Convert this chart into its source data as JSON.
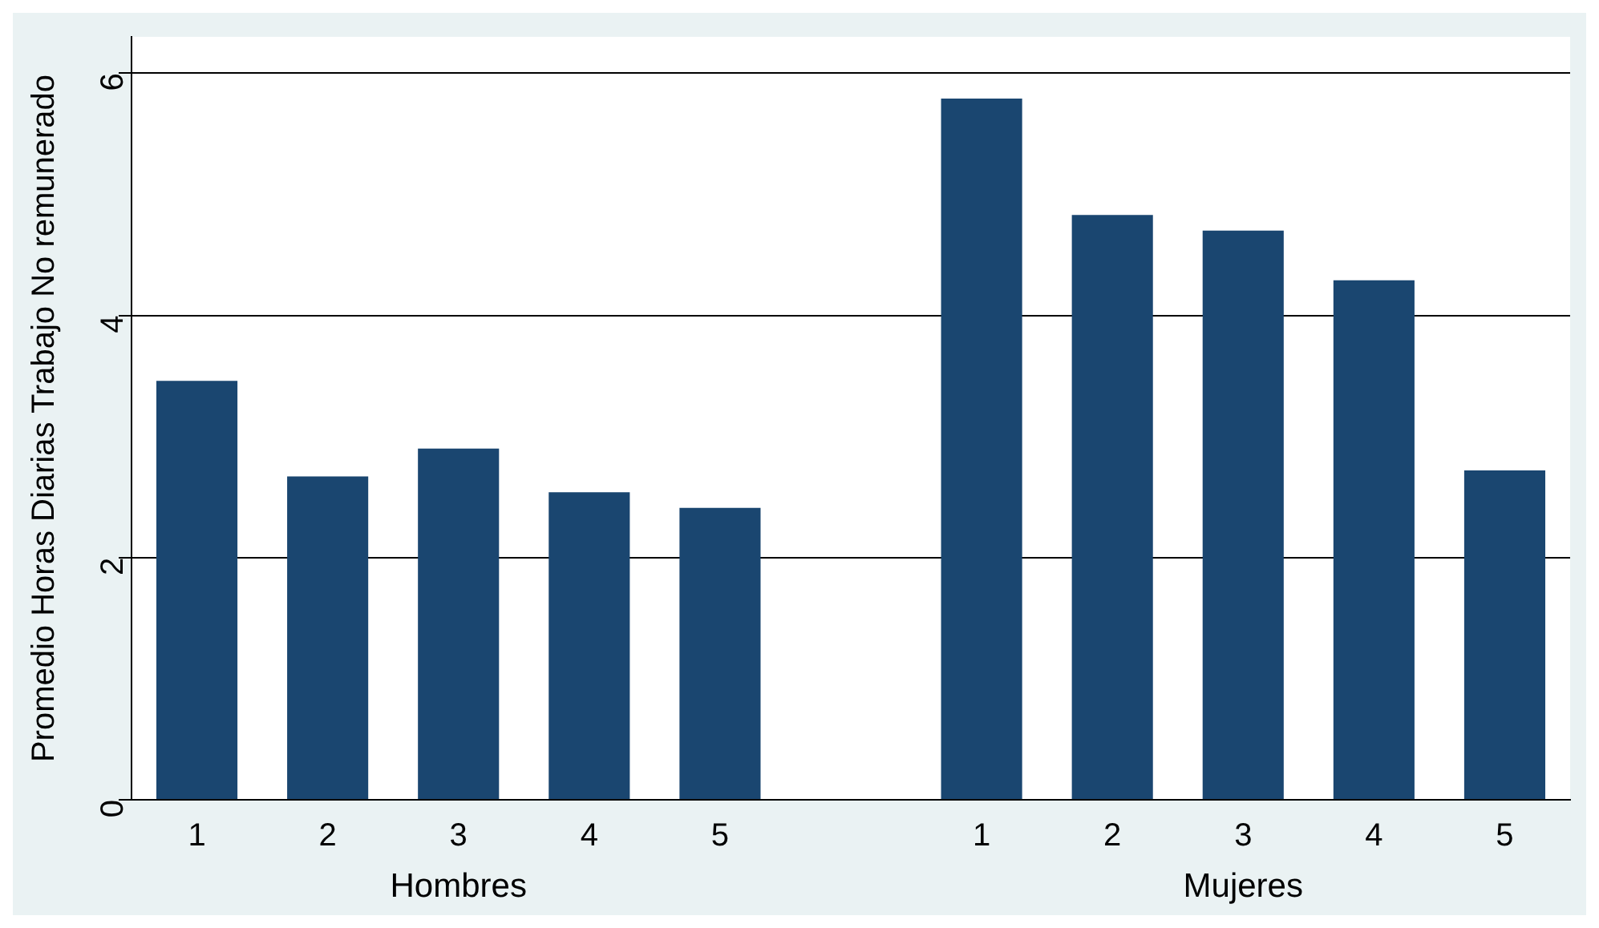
{
  "chart_data": {
    "type": "bar",
    "ylabel": "Promedio Horas Diarias Trabajo No remunerado",
    "categories": [
      "1",
      "2",
      "3",
      "4",
      "5",
      null,
      "1",
      "2",
      "3",
      "4",
      "5"
    ],
    "values": [
      3.46,
      2.67,
      2.9,
      2.54,
      2.41,
      null,
      5.79,
      4.83,
      4.7,
      4.29,
      2.72
    ],
    "color": "#1a4670",
    "ylim": [
      0,
      6.3
    ],
    "yticks": [
      0,
      2,
      4,
      6
    ],
    "grid": "y",
    "annotations": [
      "Hombres",
      "Mujeres"
    ]
  }
}
